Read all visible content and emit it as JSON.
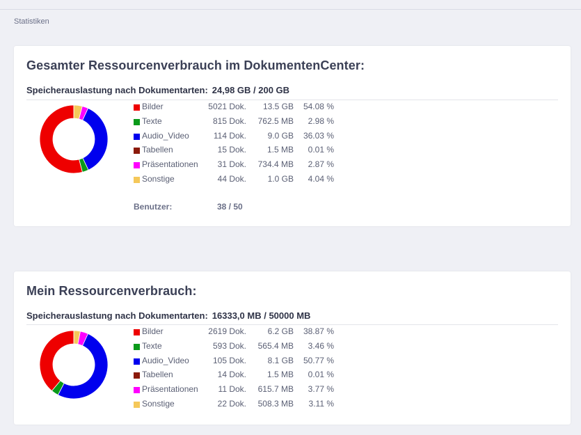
{
  "breadcrumb": "Statistiken",
  "colors": {
    "Bilder": "#ee0000",
    "Texte": "#0a9a1a",
    "Audio_Video": "#0000ee",
    "Tabellen": "#8b1a0a",
    "Präsentationen": "#ff00ff",
    "Sonstige": "#f5c85a"
  },
  "panels": [
    {
      "title": "Gesamter Ressourcenverbrauch im DokumentenCenter:",
      "storage_label": "Speicherauslastung nach Dokumentarten:",
      "storage_value": "24,98 GB / 200 GB",
      "items": [
        {
          "name": "Bilder",
          "count": "5021 Dok.",
          "size": "13.5 GB",
          "percent": "54.08 %",
          "value": 54.08
        },
        {
          "name": "Texte",
          "count": "815 Dok.",
          "size": "762.5 MB",
          "percent": "2.98 %",
          "value": 2.98
        },
        {
          "name": "Audio_Video",
          "count": "114 Dok.",
          "size": "9.0 GB",
          "percent": "36.03 %",
          "value": 36.03
        },
        {
          "name": "Tabellen",
          "count": "15 Dok.",
          "size": "1.5 MB",
          "percent": "0.01 %",
          "value": 0.01
        },
        {
          "name": "Präsentationen",
          "count": "31 Dok.",
          "size": "734.4 MB",
          "percent": "2.87 %",
          "value": 2.87
        },
        {
          "name": "Sonstige",
          "count": "44 Dok.",
          "size": "1.0 GB",
          "percent": "4.04 %",
          "value": 4.04
        }
      ],
      "users_label": "Benutzer:",
      "users_value": "38 / 50"
    },
    {
      "title": "Mein Ressourcenverbrauch:",
      "storage_label": "Speicherauslastung nach Dokumentarten:",
      "storage_value": "16333,0 MB / 50000 MB",
      "items": [
        {
          "name": "Bilder",
          "count": "2619 Dok.",
          "size": "6.2 GB",
          "percent": "38.87 %",
          "value": 38.87
        },
        {
          "name": "Texte",
          "count": "593 Dok.",
          "size": "565.4 MB",
          "percent": "3.46 %",
          "value": 3.46
        },
        {
          "name": "Audio_Video",
          "count": "105 Dok.",
          "size": "8.1 GB",
          "percent": "50.77 %",
          "value": 50.77
        },
        {
          "name": "Tabellen",
          "count": "14 Dok.",
          "size": "1.5 MB",
          "percent": "0.01 %",
          "value": 0.01
        },
        {
          "name": "Präsentationen",
          "count": "11 Dok.",
          "size": "615.7 MB",
          "percent": "3.77 %",
          "value": 3.77
        },
        {
          "name": "Sonstige",
          "count": "22 Dok.",
          "size": "508.3 MB",
          "percent": "3.11 %",
          "value": 3.11
        }
      ]
    }
  ]
}
